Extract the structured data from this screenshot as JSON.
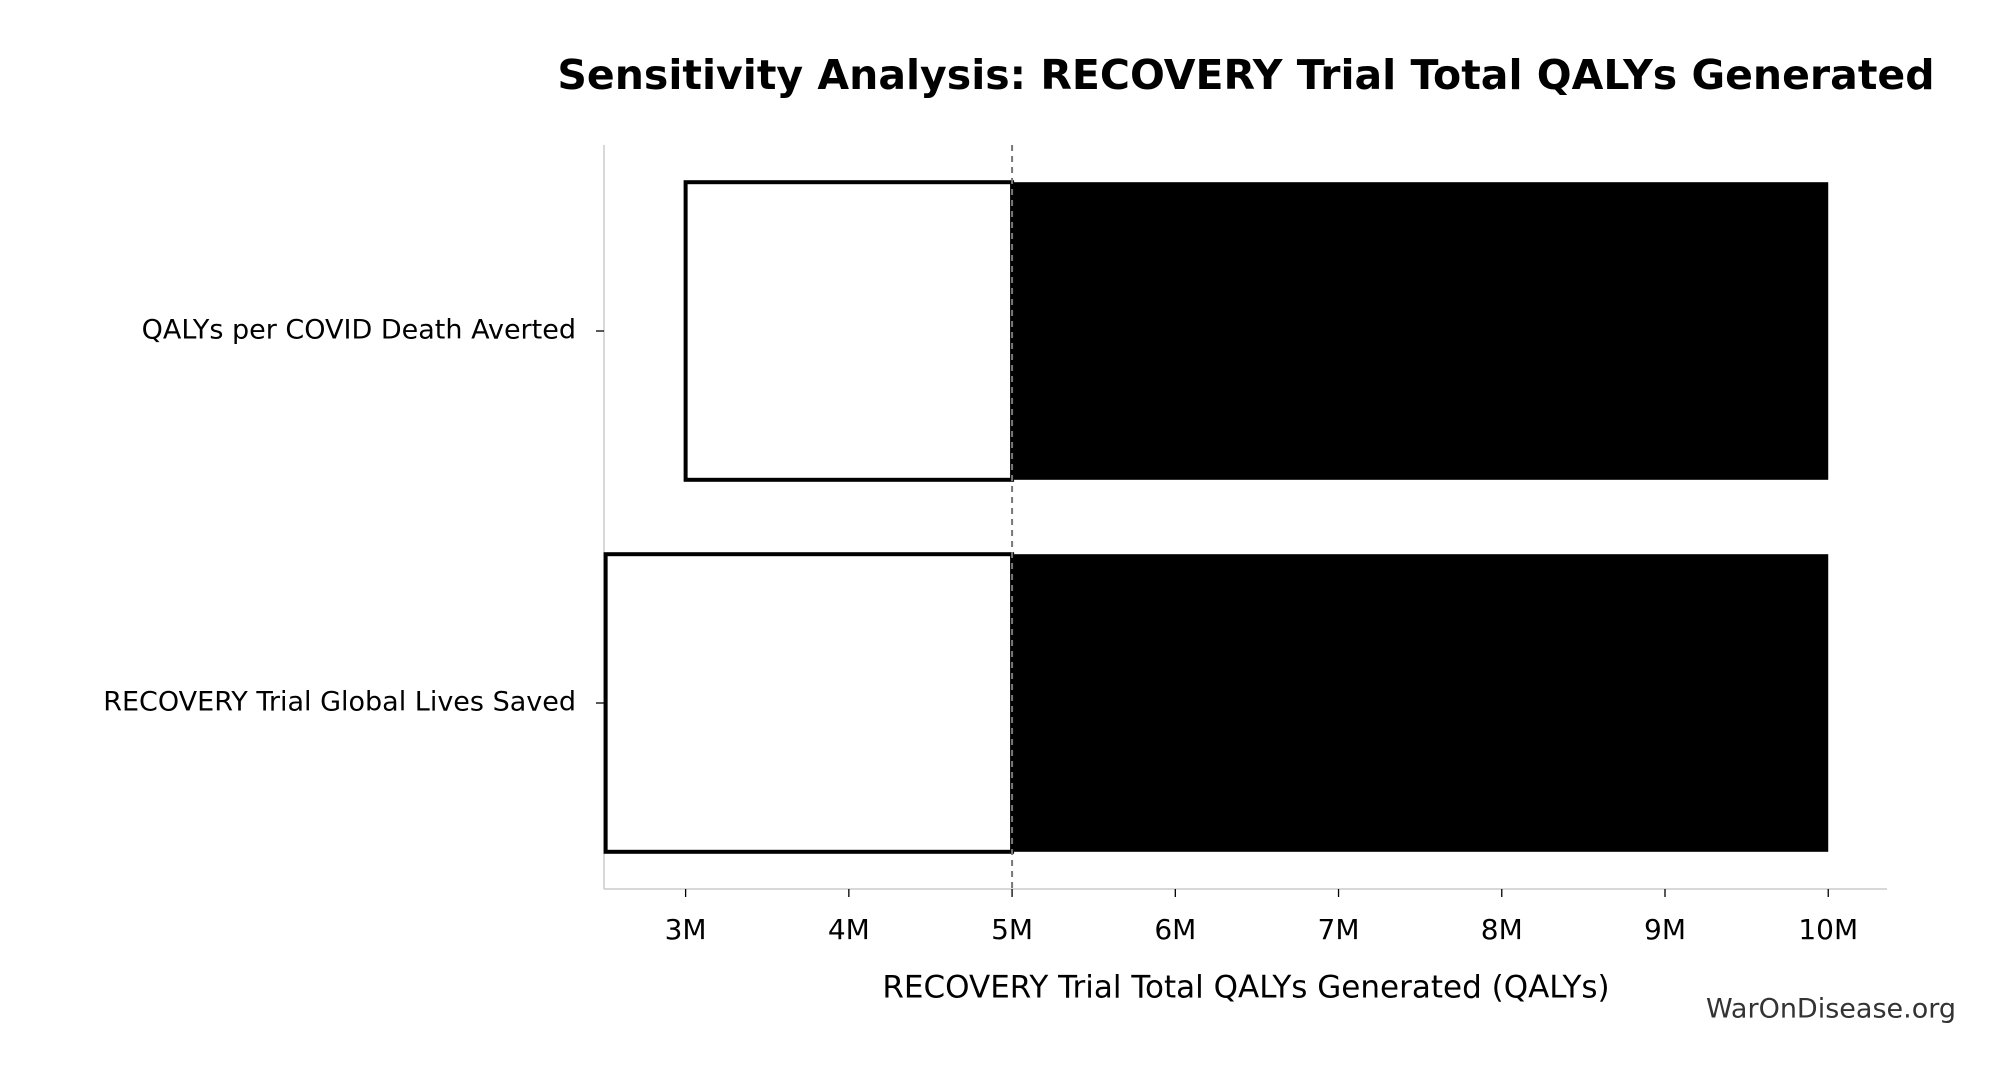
{
  "chart_data": {
    "type": "tornado",
    "title": "Sensitivity Analysis: RECOVERY Trial Total QALYs Generated",
    "xlabel": "RECOVERY Trial Total QALYs Generated (QALYs)",
    "watermark": "WarOnDisease.org",
    "categories": [
      "QALYs per COVID Death Averted",
      "RECOVERY Trial Global Lives Saved"
    ],
    "baseline": 5000000,
    "low_values": [
      3000000,
      2510000
    ],
    "high_values": [
      10000000,
      10000000
    ],
    "low_color": "#ffffff",
    "high_color": "#000000",
    "xlim": [
      2500000,
      10360000
    ],
    "xticks": [
      {
        "value": 3000000,
        "label": "3M"
      },
      {
        "value": 4000000,
        "label": "4M"
      },
      {
        "value": 5000000,
        "label": "5M"
      },
      {
        "value": 6000000,
        "label": "6M"
      },
      {
        "value": 7000000,
        "label": "7M"
      },
      {
        "value": 8000000,
        "label": "8M"
      },
      {
        "value": 9000000,
        "label": "9M"
      },
      {
        "value": 10000000,
        "label": "10M"
      }
    ]
  }
}
